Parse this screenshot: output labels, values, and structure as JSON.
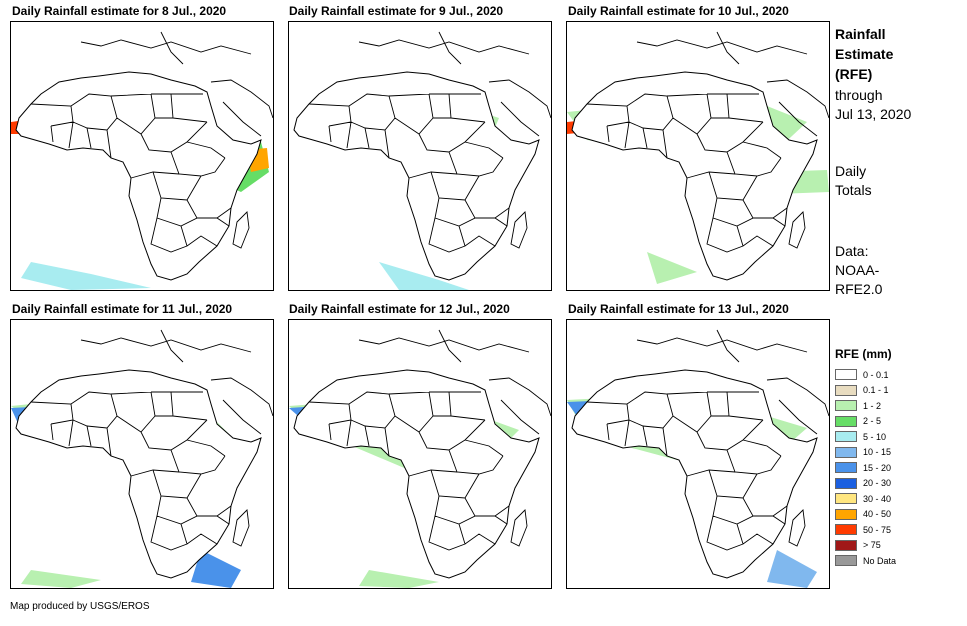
{
  "panels": [
    {
      "title": "Daily Rainfall estimate for 8 Jul., 2020"
    },
    {
      "title": "Daily Rainfall estimate for 9 Jul., 2020"
    },
    {
      "title": "Daily Rainfall estimate for 10 Jul., 2020"
    },
    {
      "title": "Daily Rainfall estimate for 11 Jul., 2020"
    },
    {
      "title": "Daily Rainfall estimate for 12 Jul., 2020"
    },
    {
      "title": "Daily Rainfall estimate for 13 Jul., 2020"
    }
  ],
  "sidebar": {
    "title_line1": "Rainfall",
    "title_line2": "Estimate",
    "title_line3": "(RFE)",
    "through_line1": "through",
    "through_line2": "Jul 13, 2020",
    "totals_line1": "Daily",
    "totals_line2": "Totals",
    "data_line1": "Data:",
    "data_line2": "NOAA-",
    "data_line3": "RFE2.0"
  },
  "legend": {
    "title": "RFE (mm)",
    "items": [
      {
        "label": "0 - 0.1",
        "color": "#ffffff"
      },
      {
        "label": "0.1 - 1",
        "color": "#e8dcc0"
      },
      {
        "label": "1 - 2",
        "color": "#b8f0b0"
      },
      {
        "label": "2 - 5",
        "color": "#66dd66"
      },
      {
        "label": "5 - 10",
        "color": "#a8ecf0"
      },
      {
        "label": "10 - 15",
        "color": "#80b8ee"
      },
      {
        "label": "15 - 20",
        "color": "#4a92ea"
      },
      {
        "label": "20 - 30",
        "color": "#1b5fe0"
      },
      {
        "label": "30 - 40",
        "color": "#ffe680"
      },
      {
        "label": "40 - 50",
        "color": "#ffa500"
      },
      {
        "label": "50 - 75",
        "color": "#ff3b00"
      },
      {
        "label": "> 75",
        "color": "#a01818"
      },
      {
        "label": "No Data",
        "color": "#999999"
      }
    ]
  },
  "credit": "Map produced by USGS/EROS"
}
